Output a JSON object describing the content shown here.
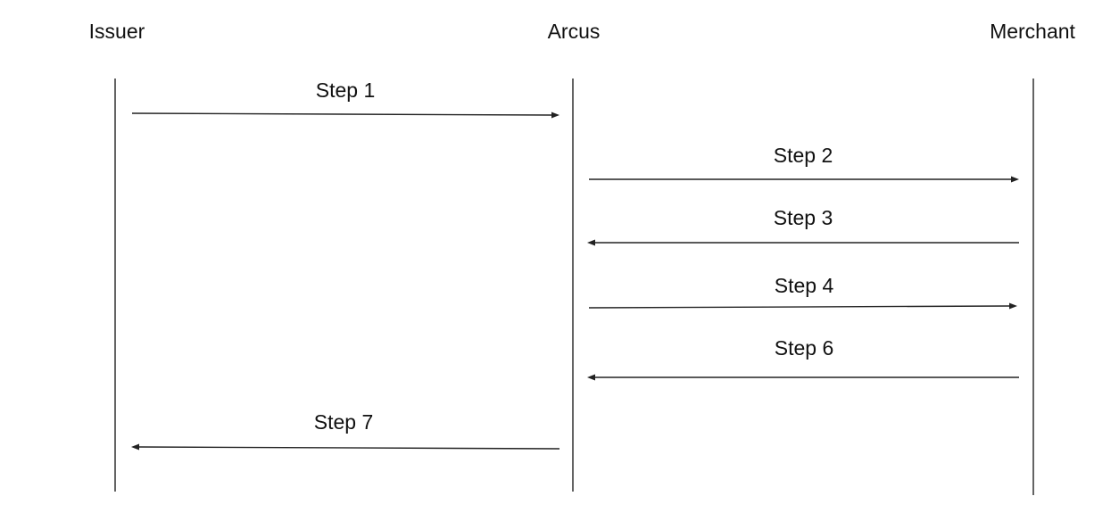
{
  "actors": [
    {
      "id": "issuer",
      "label": "Issuer"
    },
    {
      "id": "arcus",
      "label": "Arcus"
    },
    {
      "id": "merchant",
      "label": "Merchant"
    }
  ],
  "messages": [
    {
      "label": "Step 1",
      "from": "issuer",
      "to": "arcus"
    },
    {
      "label": "Step 2",
      "from": "arcus",
      "to": "merchant"
    },
    {
      "label": "Step 3",
      "from": "merchant",
      "to": "arcus"
    },
    {
      "label": "Step 4",
      "from": "arcus",
      "to": "merchant"
    },
    {
      "label": "Step 6",
      "from": "merchant",
      "to": "arcus"
    },
    {
      "label": "Step 7",
      "from": "arcus",
      "to": "issuer"
    }
  ],
  "colors": {
    "line": "#222222",
    "text": "#111111",
    "background": "#ffffff"
  }
}
